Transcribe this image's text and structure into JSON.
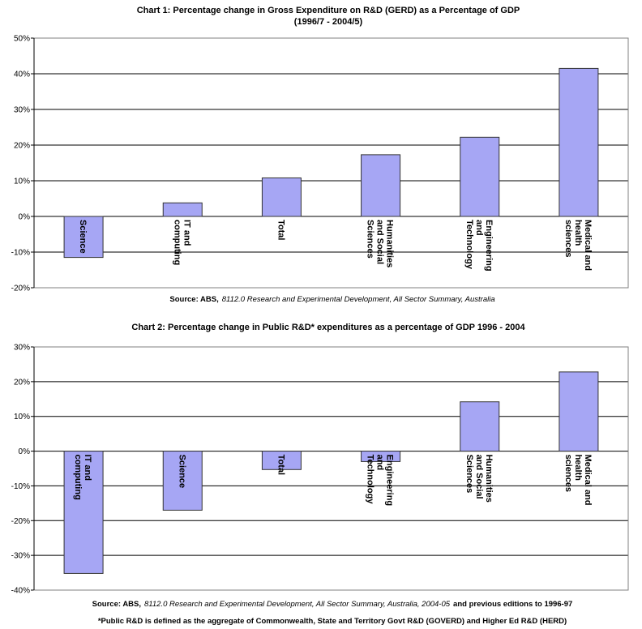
{
  "chart_data": [
    {
      "type": "bar",
      "title": "Chart 1: Percentage change in Gross Expenditure on R&D (GERD) as a Percentage of GDP",
      "subtitle": "(1996/7 - 2004/5)",
      "categories": [
        "Science",
        "IT and computing",
        "Total",
        "Humanities and Social Sciences",
        "Engineering and Technology",
        "Medical and health sciences"
      ],
      "values": [
        -11.5,
        3.8,
        10.8,
        17.3,
        22.2,
        41.5
      ],
      "color": "#a6a6f4",
      "ylim": [
        -20,
        50
      ],
      "yticks": [
        {
          "value": -20,
          "label": "-20%"
        },
        {
          "value": -10,
          "label": "-10%"
        },
        {
          "value": 0,
          "label": "0%"
        },
        {
          "value": 10,
          "label": "10%"
        },
        {
          "value": 20,
          "label": "20%"
        },
        {
          "value": 30,
          "label": "30%"
        },
        {
          "value": 40,
          "label": "40%"
        },
        {
          "value": 50,
          "label": "50%"
        }
      ],
      "grid": true,
      "source": [
        "Source: ABS,",
        "8112.0 Research and Experimental Development, All Sector Summary, Australia"
      ]
    },
    {
      "type": "bar",
      "title": "Chart 2: Percentage change in Public R&D* expenditures as a percentage of GDP 1996 - 2004",
      "categories": [
        "IT and computing",
        "Science",
        "Total",
        "Engineering and Technology",
        "Humanities and Social Sciences",
        "Medical and health sciences"
      ],
      "values": [
        -35.2,
        -17,
        -5.3,
        -3,
        14.2,
        22.8
      ],
      "color": "#a6a6f4",
      "ylim": [
        -40,
        30
      ],
      "yticks": [
        {
          "value": -40,
          "label": "-40%"
        },
        {
          "value": -30,
          "label": "-30%"
        },
        {
          "value": -20,
          "label": "-20%"
        },
        {
          "value": -10,
          "label": "-10%"
        },
        {
          "value": 0,
          "label": "0%"
        },
        {
          "value": 10,
          "label": "10%"
        },
        {
          "value": 20,
          "label": "20%"
        },
        {
          "value": 30,
          "label": "30%"
        }
      ],
      "grid": true,
      "source": [
        "Source: ABS,",
        "8112.0 Research and Experimental Development, All Sector Summary, Australia, 2004-05",
        "and previous editions to 1996-97"
      ],
      "footnote": "*Public R&D is defined as the aggregate of Commonwealth, State and Territory Govt R&D (GOVERD) and Higher Ed R&D (HERD)"
    }
  ]
}
